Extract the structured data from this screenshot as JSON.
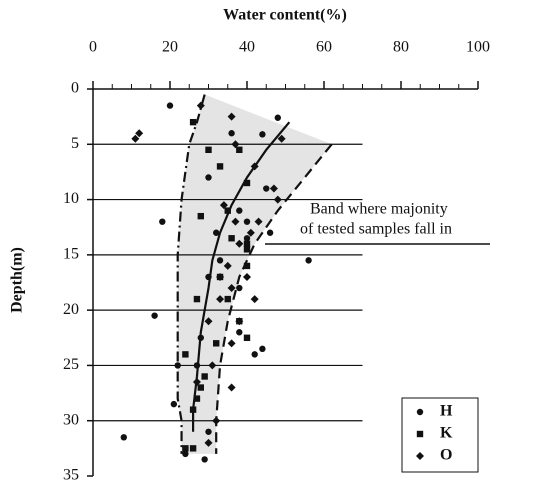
{
  "chart_data": {
    "type": "scatter",
    "title": "Water content(%)",
    "ylabel": "Depth(m)",
    "annotation": [
      "Band where majonity",
      "of tested samples fall in"
    ],
    "xlim": [
      0,
      100
    ],
    "xticks": [
      0,
      20,
      40,
      60,
      80,
      100
    ],
    "ylim": [
      0,
      35
    ],
    "yticks": [
      0,
      5,
      10,
      15,
      20,
      25,
      30,
      35
    ],
    "y_inverted": true,
    "x_axis_top": true,
    "grid": true,
    "legend": "lower right",
    "series": [
      {
        "name": "H",
        "marker": "circle",
        "color": "#111",
        "x": [
          20,
          36,
          48,
          44,
          30,
          38,
          40,
          46,
          18,
          33,
          30,
          16,
          38,
          28,
          42,
          44,
          22,
          21,
          27,
          30,
          8,
          24,
          29,
          40,
          45,
          56,
          32,
          38
        ],
        "y": [
          1.5,
          4,
          2.6,
          4.1,
          8,
          11,
          13.5,
          13,
          12,
          15.5,
          17,
          20.5,
          22,
          22.5,
          24,
          23.5,
          25,
          28.5,
          25,
          31,
          31.5,
          33,
          33.5,
          12,
          9,
          15.5,
          13,
          18
        ]
      },
      {
        "name": "K",
        "marker": "square",
        "color": "#111",
        "x": [
          26,
          30,
          38,
          33,
          40,
          35,
          28,
          36,
          40,
          27,
          33,
          35,
          38,
          40,
          32,
          24,
          28,
          27,
          26,
          29,
          24,
          26,
          40,
          40
        ],
        "y": [
          3,
          5.5,
          5.5,
          7,
          8.5,
          11,
          11.5,
          13.5,
          14,
          19,
          17,
          19,
          21,
          22.5,
          23,
          24,
          27,
          28,
          29,
          26,
          32.5,
          32.5,
          14.5,
          16
        ]
      },
      {
        "name": "O",
        "marker": "diamond",
        "color": "#111",
        "x": [
          28,
          36,
          12,
          11,
          37,
          49,
          42,
          48,
          47,
          34,
          37,
          43,
          41,
          38,
          35,
          33,
          40,
          36,
          33,
          42,
          38,
          30,
          36,
          31,
          27,
          36,
          32,
          30
        ],
        "y": [
          1.5,
          2.5,
          4,
          4.5,
          5,
          4.5,
          7,
          10,
          9,
          10.5,
          12,
          12,
          13,
          14,
          16,
          17,
          17,
          18,
          19,
          19,
          21,
          21,
          23,
          25,
          26.5,
          27,
          30,
          32
        ]
      }
    ],
    "lines": [
      {
        "style": "solid",
        "x": [
          51,
          45,
          40,
          36,
          33,
          31,
          30,
          28,
          27,
          26,
          26
        ],
        "y": [
          3,
          5.5,
          8,
          10.5,
          13,
          15.5,
          18,
          22,
          26,
          29,
          31
        ]
      },
      {
        "style": "dashdot",
        "x": [
          29,
          27,
          25,
          23,
          22,
          22,
          22,
          22,
          23,
          23
        ],
        "y": [
          0.5,
          3,
          5,
          10,
          15,
          20,
          25,
          28,
          30,
          33
        ]
      },
      {
        "style": "dashed",
        "x": [
          62,
          55,
          48,
          42,
          38,
          35,
          33,
          32,
          32
        ],
        "y": [
          5,
          8,
          11,
          14,
          17,
          21,
          25,
          30,
          33
        ]
      }
    ]
  }
}
